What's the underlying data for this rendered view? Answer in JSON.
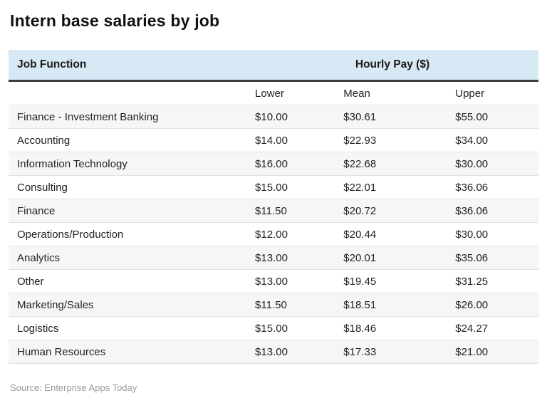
{
  "page": {
    "title": "Intern base salaries by job",
    "source": "Source: Enterprise Apps Today"
  },
  "table": {
    "job_column_header": "Job Function",
    "pay_group_header": "Hourly Pay ($)",
    "sub_headers": {
      "lower": "Lower",
      "mean": "Mean",
      "upper": "Upper"
    }
  },
  "colors": {
    "header_bg": "#d7e9f4",
    "header_rule": "#393e41",
    "row_alt_bg": "#f6f6f6",
    "row_divider": "#e2e2e2",
    "body_text": "#212327",
    "source_text": "#9a9a9a"
  },
  "chart_data": {
    "type": "table",
    "title": "Intern base salaries by job",
    "group_header": {
      "label": "Hourly Pay ($)",
      "spans": [
        "Lower",
        "Mean",
        "Upper"
      ]
    },
    "columns": [
      "Job Function",
      "Lower",
      "Mean",
      "Upper"
    ],
    "rows": [
      [
        "Finance - Investment Banking",
        "$10.00",
        "$30.61",
        "$55.00"
      ],
      [
        "Accounting",
        "$14.00",
        "$22.93",
        "$34.00"
      ],
      [
        "Information Technology",
        "$16.00",
        "$22.68",
        "$30.00"
      ],
      [
        "Consulting",
        "$15.00",
        "$22.01",
        "$36.06"
      ],
      [
        "Finance",
        "$11.50",
        "$20.72",
        "$36.06"
      ],
      [
        "Operations/Production",
        "$12.00",
        "$20.44",
        "$30.00"
      ],
      [
        "Analytics",
        "$13.00",
        "$20.01",
        "$35.06"
      ],
      [
        "Other",
        "$13.00",
        "$19.45",
        "$31.25"
      ],
      [
        "Marketing/Sales",
        "$11.50",
        "$18.51",
        "$26.00"
      ],
      [
        "Logistics",
        "$15.00",
        "$18.46",
        "$24.27"
      ],
      [
        "Human Resources",
        "$13.00",
        "$17.33",
        "$21.00"
      ]
    ],
    "zebra_striping": "odd rows shaded",
    "source": "Source: Enterprise Apps Today"
  }
}
